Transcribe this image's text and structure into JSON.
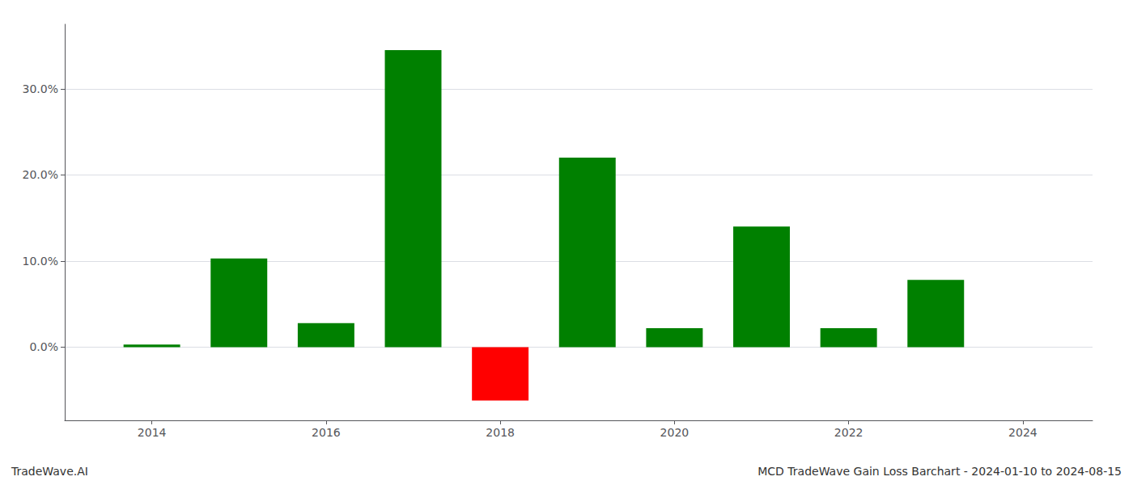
{
  "chart_data": {
    "type": "bar",
    "annotations": [
      "TradeWave.AI",
      "MCD TradeWave Gain Loss Barchart - 2024-01-10 to 2024-08-15"
    ],
    "x": [
      2014,
      2015,
      2016,
      2017,
      2018,
      2019,
      2020,
      2021,
      2022,
      2023
    ],
    "values": [
      0.003,
      0.103,
      0.028,
      0.345,
      -0.062,
      0.22,
      0.022,
      0.14,
      0.022,
      0.078
    ],
    "colors": [
      "#008000",
      "#008000",
      "#008000",
      "#008000",
      "#ff0000",
      "#008000",
      "#008000",
      "#008000",
      "#008000",
      "#008000"
    ],
    "xlim": [
      2013.0,
      2024.8
    ],
    "xticks": [
      2014,
      2016,
      2018,
      2020,
      2022,
      2024
    ],
    "ylim": [
      -0.085,
      0.375
    ],
    "yticks": [
      {
        "value": 0.0,
        "label": "0.0%"
      },
      {
        "value": 0.1,
        "label": "10.0%"
      },
      {
        "value": 0.2,
        "label": "20.0%"
      },
      {
        "value": 0.3,
        "label": "30.0%"
      }
    ],
    "grid": true
  }
}
